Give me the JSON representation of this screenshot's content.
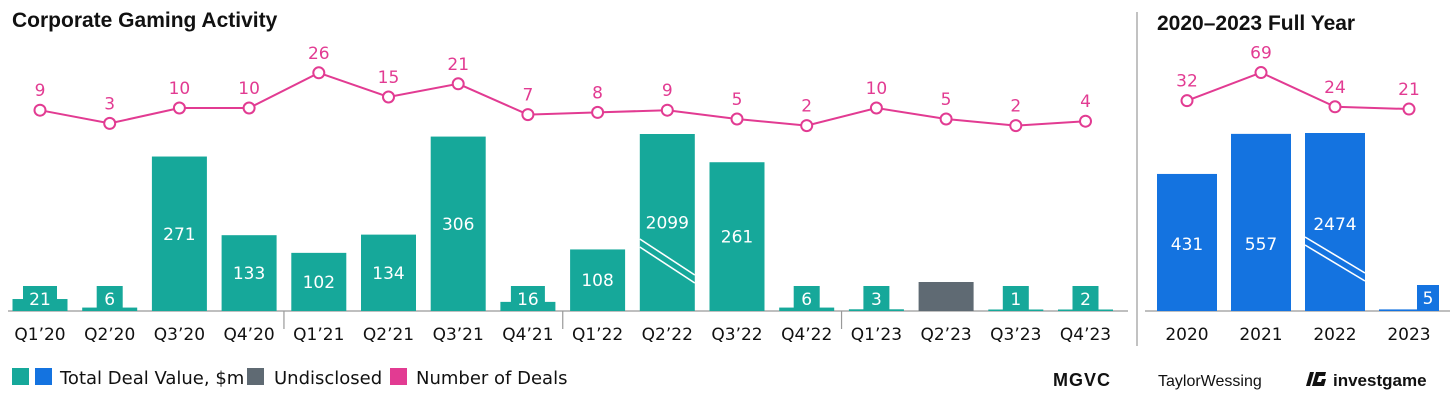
{
  "colors": {
    "teal": "#16a89a",
    "blue": "#1473e0",
    "grey": "#5f6a73",
    "pink": "#e23b92",
    "axis": "#999999"
  },
  "chart_data": [
    {
      "type": "bar",
      "title": "Corporate Gaming Activity",
      "categories": [
        "Q1’20",
        "Q2’20",
        "Q3’20",
        "Q4’20",
        "Q1’21",
        "Q2’21",
        "Q3’21",
        "Q4’21",
        "Q1’22",
        "Q2’22",
        "Q3’22",
        "Q4’22",
        "Q1’23",
        "Q2’23",
        "Q3’23",
        "Q4’23"
      ],
      "series": [
        {
          "name": "Total Deal Value, $m",
          "values": [
            21,
            6,
            271,
            133,
            102,
            134,
            306,
            16,
            108,
            2099,
            261,
            6,
            3,
            null,
            1,
            2
          ],
          "labels": [
            "21",
            "6",
            "271",
            "133",
            "102",
            "134",
            "306",
            "16",
            "108",
            "2099",
            "261",
            "6",
            "3",
            "",
            "1",
            "2"
          ],
          "color": "teal",
          "axis_break": [
            9
          ]
        },
        {
          "name": "Undisclosed",
          "values": [
            null,
            null,
            null,
            null,
            null,
            null,
            null,
            null,
            null,
            null,
            null,
            null,
            null,
            30,
            null,
            null
          ],
          "color": "grey"
        },
        {
          "name": "Number of Deals",
          "type": "line",
          "values": [
            9,
            3,
            10,
            10,
            26,
            15,
            21,
            7,
            8,
            9,
            5,
            2,
            10,
            5,
            2,
            4
          ],
          "color": "pink"
        }
      ],
      "year_separators_after": [
        3,
        7,
        11
      ]
    },
    {
      "type": "bar",
      "title": "2020–2023 Full Year",
      "categories": [
        "2020",
        "2021",
        "2022",
        "2023"
      ],
      "series": [
        {
          "name": "Total Deal Value, $m",
          "values": [
            431,
            557,
            2474,
            5
          ],
          "labels": [
            "431",
            "557",
            "2474",
            "5"
          ],
          "color": "blue",
          "axis_break": [
            2
          ]
        },
        {
          "name": "Number of Deals",
          "type": "line",
          "values": [
            32,
            69,
            24,
            21
          ],
          "color": "pink"
        }
      ]
    }
  ],
  "legend": {
    "value_label": "Total Deal Value, $m",
    "undisclosed_label": "Undisclosed",
    "deals_label": "Number of Deals"
  },
  "logos": {
    "mgvc": "MGVC",
    "tw": "TaylorWessing",
    "ig": "investgame"
  }
}
